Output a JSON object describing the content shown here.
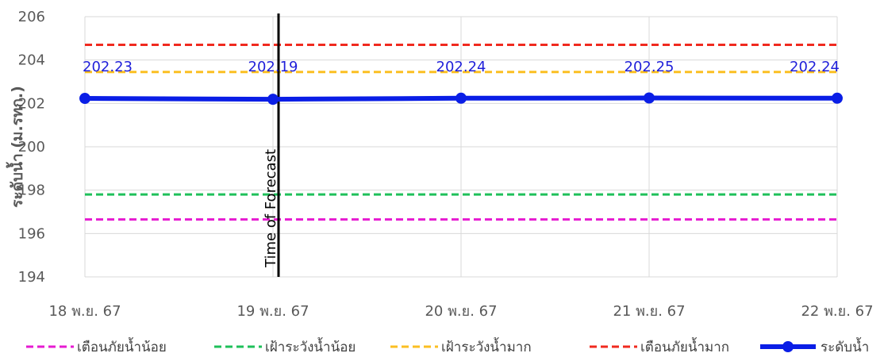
{
  "chart_data": {
    "type": "line",
    "ylabel": "ระดับน้ำ (ม.รทก.)",
    "ylim": [
      194,
      206
    ],
    "yticks": [
      194,
      196,
      198,
      200,
      202,
      204,
      206
    ],
    "categories": [
      "18 พ.ย. 67",
      "19 พ.ย. 67",
      "20 พ.ย. 67",
      "21 พ.ย. 67",
      "22 พ.ย. 67"
    ],
    "grid": true,
    "legend_position": "bottom",
    "reference_lines": [
      {
        "name": "เตือนภัยน้ำน้อย",
        "value": 196.65,
        "color": "#e61bd1"
      },
      {
        "name": "เฝ้าระวังน้ำน้อย",
        "value": 197.8,
        "color": "#1fc05a"
      },
      {
        "name": "เฝ้าระวังน้ำมาก",
        "value": 203.45,
        "color": "#fbbf22"
      },
      {
        "name": "เตือนภัยน้ำมาก",
        "value": 204.7,
        "color": "#f02a1f"
      }
    ],
    "series": [
      {
        "name": "ระดับน้ำ",
        "color": "#0a1ee6",
        "values": [
          202.23,
          202.19,
          202.24,
          202.25,
          202.24
        ],
        "labels": [
          "202.23",
          "202.19",
          "202.24",
          "202.25",
          "202.24"
        ]
      }
    ],
    "annotation": {
      "text": "Time of Forecast",
      "category": "19 พ.ย. 67",
      "color": "#000000"
    }
  }
}
